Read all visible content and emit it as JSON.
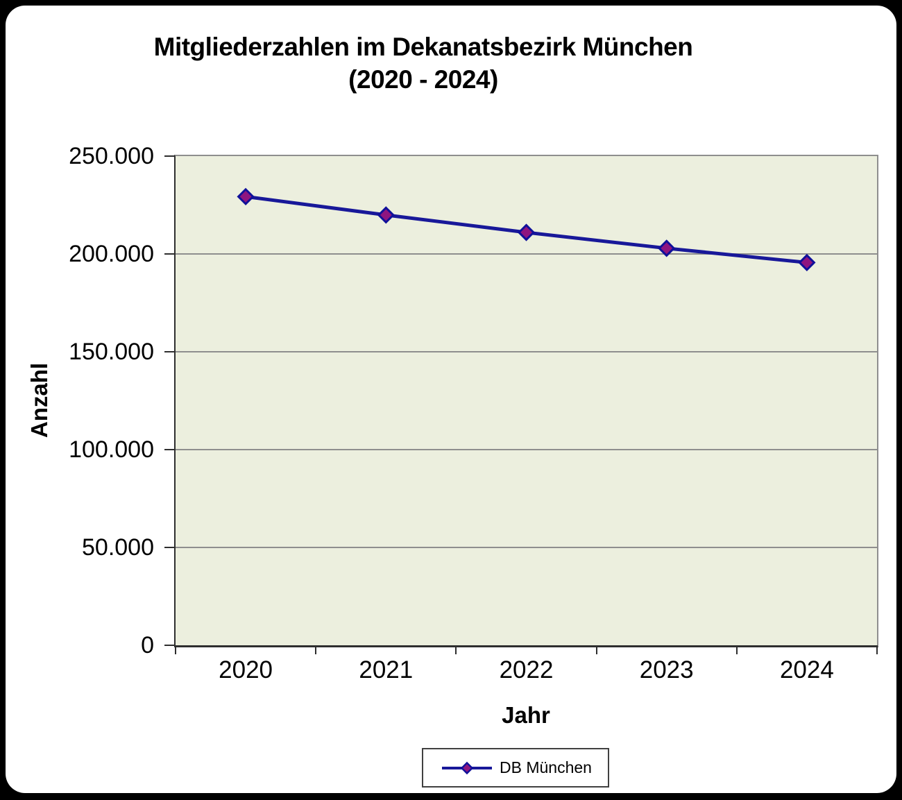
{
  "title": {
    "line1": "Mitgliederzahlen im Dekanatsbezirk München",
    "line2": "(2020 - 2024)"
  },
  "chart_data": {
    "type": "line",
    "title": "Mitgliederzahlen im Dekanatsbezirk München (2020 - 2024)",
    "categories": [
      "2020",
      "2021",
      "2022",
      "2023",
      "2024"
    ],
    "series": [
      {
        "name": "DB München",
        "values": [
          229300,
          219900,
          211000,
          202900,
          195600
        ]
      }
    ],
    "xlabel": "Jahr",
    "ylabel": "Anzahl",
    "ylim": [
      0,
      250000
    ],
    "ytick_step": 50000,
    "ytick_labels": [
      "0",
      "50.000",
      "100.000",
      "150.000",
      "200.000",
      "250.000"
    ],
    "grid": true,
    "legend_position": "bottom",
    "colors": {
      "line": "#181899",
      "marker_fill": "#8E1580",
      "marker_border": "#10109A",
      "plot_bg": "#ECEFDE",
      "gridline": "#8E8E8E",
      "axis": "#2E2E2E",
      "frame_bg": "#000000",
      "panel_bg": "#FFFFFF"
    }
  },
  "legend": {
    "items": [
      {
        "label": "DB München"
      }
    ]
  }
}
